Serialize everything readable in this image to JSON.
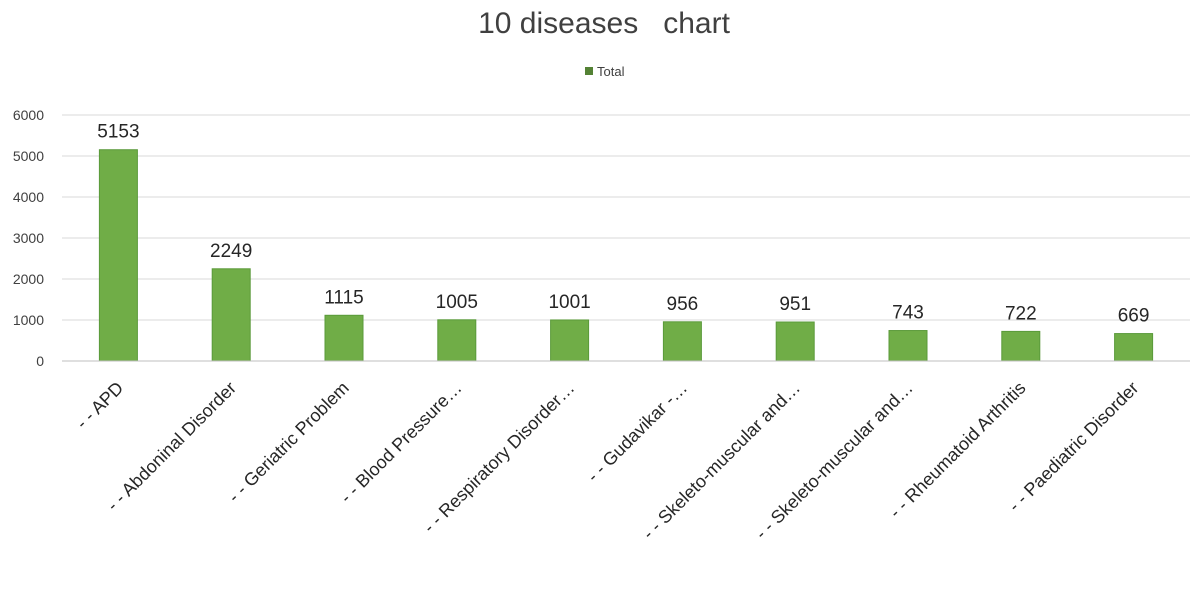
{
  "chart_data": {
    "type": "bar",
    "title": "10 diseases   chart",
    "xlabel": "",
    "ylabel": "",
    "ylim": [
      0,
      6000
    ],
    "yticks": [
      0,
      1000,
      2000,
      3000,
      4000,
      5000,
      6000
    ],
    "grid": true,
    "legend_position": "top",
    "bar_color": "#70ad47",
    "bar_edge_color": "#5a9a3a",
    "legend_color": "#548235",
    "categories": [
      "- - APD",
      "- - Abdoninal Disorder",
      "- - Geriatric Problem",
      "- - Blood Pressure…",
      "- - Respiratory Disorder…",
      "- - Gudavikar -…",
      "- - Skeleto-muscular and…",
      "- - Skeleto-muscular and…",
      "- - Rheumatoid Arthritis",
      "- - Paediatric Disorder"
    ],
    "series": [
      {
        "name": "Total",
        "values": [
          5153,
          2249,
          1115,
          1005,
          1001,
          956,
          951,
          743,
          722,
          669
        ]
      }
    ]
  }
}
